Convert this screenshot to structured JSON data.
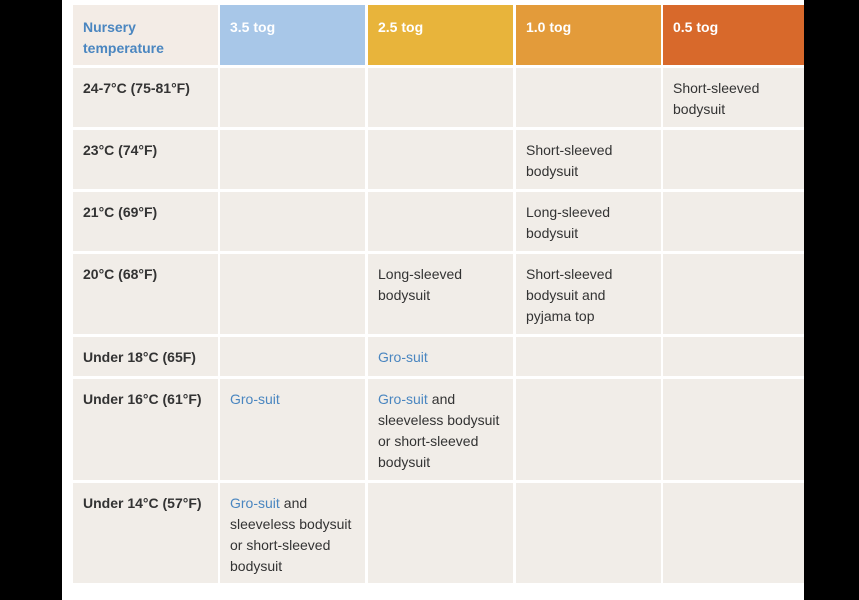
{
  "table": {
    "header": [
      "Nursery temperature",
      "3.5 tog",
      "2.5 tog",
      "1.0 tog",
      "0.5 tog"
    ],
    "rows": [
      {
        "label": "24-7°C (75-81°F)",
        "cells": [
          null,
          null,
          null,
          {
            "text": "Short-sleeved bodysuit"
          }
        ]
      },
      {
        "label": "23°C (74°F)",
        "cells": [
          null,
          null,
          {
            "text": "Short-sleeved bodysuit"
          },
          null
        ]
      },
      {
        "label": "21°C (69°F)",
        "cells": [
          null,
          null,
          {
            "text": "Long-sleeved bodysuit"
          },
          null
        ]
      },
      {
        "label": "20°C (68°F)",
        "cells": [
          null,
          {
            "text": "Long-sleeved bodysuit"
          },
          {
            "text": "Short-sleeved bodysuit and pyjama top"
          },
          null
        ]
      },
      {
        "label": "Under 18°C (65F)",
        "cells": [
          null,
          {
            "link": "Gro-suit"
          },
          null,
          null
        ]
      },
      {
        "label": "Under 16°C (61°F)",
        "cells": [
          {
            "link": "Gro-suit"
          },
          {
            "link": "Gro-suit",
            "text": "and sleeveless bodysuit or short-sleeved bodysuit"
          },
          null,
          null
        ]
      },
      {
        "label": "Under 14°C (57°F)",
        "cells": [
          {
            "link": "Gro-suit",
            "text": "and sleeveless bodysuit or short-sleeved bodysuit"
          },
          null,
          null,
          null
        ]
      }
    ]
  }
}
